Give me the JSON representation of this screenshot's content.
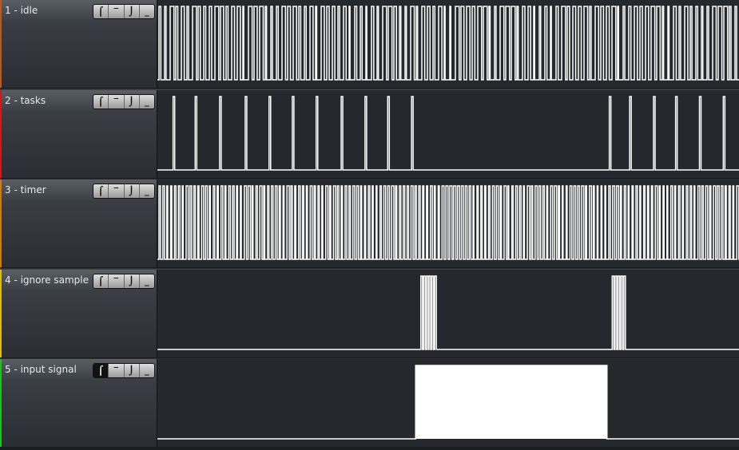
{
  "time_range": [
    0,
    1000
  ],
  "channels": [
    {
      "name": "1 - idle",
      "color": "#b85a1a",
      "trigger_active": null,
      "type": "dense",
      "pulses": 104,
      "seed": 3
    },
    {
      "name": "2 - tasks",
      "color": "#d01818",
      "trigger_active": null,
      "type": "pulses",
      "pulse_times": [
        27,
        65,
        107,
        151,
        192,
        232,
        273,
        316,
        357,
        396,
        437,
        777,
        812,
        853,
        891,
        932,
        973
      ],
      "pulse_width": 2
    },
    {
      "name": "3 - timer",
      "color": "#d07a10",
      "trigger_active": null,
      "type": "dense",
      "pulses": 150,
      "seed": 7
    },
    {
      "name": "4 - ignore sample",
      "color": "#d8c010",
      "trigger_active": null,
      "type": "pulses",
      "pulse_times": [
        453,
        458,
        463,
        467,
        472,
        477,
        782,
        787,
        792,
        797,
        802
      ],
      "pulse_width": 2
    },
    {
      "name": "5 - input signal",
      "color": "#20c020",
      "trigger_active": "rising",
      "type": "levels",
      "high": [
        [
          444,
          773
        ]
      ]
    }
  ],
  "trigger_buttons": [
    {
      "id": "rising",
      "glyph": "⌠",
      "icon": "rising-edge-icon"
    },
    {
      "id": "high",
      "glyph": "‾",
      "icon": "high-level-icon"
    },
    {
      "id": "falling",
      "glyph": "⌡",
      "icon": "falling-edge-icon"
    },
    {
      "id": "low",
      "glyph": "_",
      "icon": "low-level-icon"
    }
  ]
}
